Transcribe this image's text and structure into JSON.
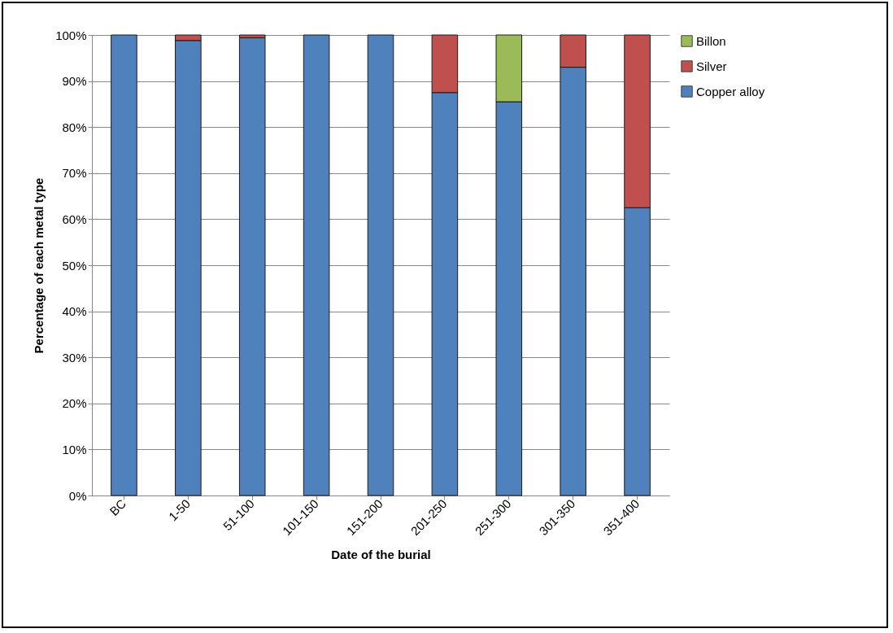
{
  "chart_data": {
    "type": "bar",
    "stacked": true,
    "xlabel": "Date of the burial",
    "ylabel": "Percentage of each metal type",
    "categories": [
      "BC",
      "1-50",
      "51-100",
      "101-150",
      "151-200",
      "201-250",
      "251-300",
      "301-350",
      "351-400"
    ],
    "series": [
      {
        "name": "Copper alloy",
        "color": "#4f81bd",
        "values": [
          100,
          98.8,
          99.4,
          100,
          100,
          87.5,
          85.5,
          93,
          62.5
        ]
      },
      {
        "name": "Silver",
        "color": "#c0504d",
        "values": [
          null,
          1.2,
          0.6,
          null,
          null,
          12.5,
          null,
          7,
          37.5
        ]
      },
      {
        "name": "Billon",
        "color": "#9bbb59",
        "values": [
          null,
          null,
          null,
          null,
          null,
          null,
          14.5,
          null,
          null
        ]
      }
    ],
    "ylim": [
      0,
      100
    ],
    "yticks": [
      {
        "value": 0,
        "label": "0%"
      },
      {
        "value": 10,
        "label": "10%"
      },
      {
        "value": 20,
        "label": "20%"
      },
      {
        "value": 30,
        "label": "30%"
      },
      {
        "value": 40,
        "label": "40%"
      },
      {
        "value": 50,
        "label": "50%"
      },
      {
        "value": 60,
        "label": "60%"
      },
      {
        "value": 70,
        "label": "70%"
      },
      {
        "value": 80,
        "label": "80%"
      },
      {
        "value": 90,
        "label": "90%"
      },
      {
        "value": 100,
        "label": "100%"
      }
    ],
    "grid": "y",
    "legend": "right"
  }
}
